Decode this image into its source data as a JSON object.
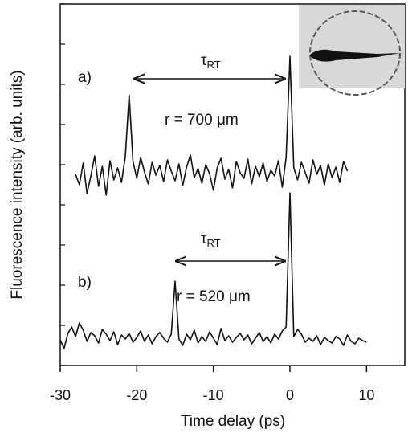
{
  "chart_data": {
    "type": "line",
    "xlabel": "Time delay (ps)",
    "ylabel": "Fluorescence intensity (arb. units)",
    "xlim": [
      -30,
      15
    ],
    "xticks": [
      -30,
      -20,
      -10,
      0,
      10
    ],
    "ylim": [
      0,
      45
    ],
    "yticks": [
      0,
      5,
      10,
      15,
      20,
      25,
      30,
      35,
      40,
      45
    ],
    "series": [
      {
        "name": "a)",
        "color": "#111111",
        "x": [
          -28,
          -27.5,
          -27,
          -26.5,
          -26,
          -25.5,
          -25,
          -24.5,
          -24,
          -23.5,
          -23,
          -22.5,
          -22,
          -21.5,
          -21,
          -20.5,
          -20,
          -19.5,
          -19,
          -18.5,
          -18,
          -17.5,
          -17,
          -16.5,
          -16,
          -15.5,
          -15,
          -14.5,
          -14,
          -13.5,
          -13,
          -12.5,
          -12,
          -11.5,
          -11,
          -10.5,
          -10,
          -9.5,
          -9,
          -8.5,
          -8,
          -7.5,
          -7,
          -6.5,
          -6,
          -5.5,
          -5,
          -4.5,
          -4,
          -3.5,
          -3,
          -2.5,
          -2,
          -1.5,
          -1,
          -0.5,
          0,
          0.5,
          1,
          1.5,
          2,
          2.5,
          3,
          3.5,
          4,
          4.5,
          5,
          5.5,
          6,
          6.5,
          7,
          7.5
        ],
        "values": [
          23.8,
          22.5,
          25.2,
          21.4,
          23.6,
          26.1,
          22.3,
          24.8,
          21.2,
          25.5,
          23.1,
          24.6,
          22.8,
          26.0,
          33.7,
          25.4,
          23.3,
          25.9,
          24.1,
          22.6,
          25.3,
          23.7,
          24.9,
          22.9,
          25.6,
          24.2,
          23.0,
          25.1,
          22.4,
          24.7,
          26.2,
          23.4,
          24.5,
          22.7,
          25.0,
          23.9,
          21.8,
          24.6,
          25.8,
          23.2,
          24.4,
          22.1,
          25.4,
          24.0,
          23.3,
          25.7,
          22.6,
          24.8,
          23.5,
          25.2,
          22.9,
          24.3,
          23.6,
          25.5,
          22.2,
          25.9,
          38.5,
          24.6,
          23.1,
          25.3,
          24.0,
          22.7,
          25.6,
          23.8,
          24.9,
          22.5,
          25.1,
          23.4,
          24.7,
          22.8,
          25.4,
          24.2
        ]
      },
      {
        "name": "b)",
        "color": "#111111",
        "x": [
          -30,
          -29.5,
          -29,
          -28.5,
          -28,
          -27.5,
          -27,
          -26.5,
          -26,
          -25.5,
          -25,
          -24.5,
          -24,
          -23.5,
          -23,
          -22.5,
          -22,
          -21.5,
          -21,
          -20.5,
          -20,
          -19.5,
          -19,
          -18.5,
          -18,
          -17.5,
          -17,
          -16.5,
          -16,
          -15.5,
          -15,
          -14.5,
          -14,
          -13.5,
          -13,
          -12.5,
          -12,
          -11.5,
          -11,
          -10.5,
          -10,
          -9.5,
          -9,
          -8.5,
          -8,
          -7.5,
          -7,
          -6.5,
          -6,
          -5.5,
          -5,
          -4.5,
          -4,
          -3.5,
          -3,
          -2.5,
          -2,
          -1.5,
          -1,
          -0.5,
          0,
          0.5,
          1,
          1.5,
          2,
          2.5,
          3,
          3.5,
          4,
          4.5,
          5,
          5.5,
          6,
          6.5,
          7,
          7.5,
          8,
          8.5,
          9,
          9.5,
          10
        ],
        "values": [
          3.2,
          2.1,
          4.0,
          4.8,
          3.6,
          5.3,
          4.4,
          3.0,
          4.1,
          3.7,
          2.8,
          4.5,
          3.9,
          3.1,
          4.2,
          2.6,
          3.8,
          3.3,
          4.0,
          2.9,
          3.5,
          4.3,
          3.0,
          3.8,
          2.7,
          3.6,
          4.1,
          3.4,
          2.9,
          3.9,
          10.5,
          3.3,
          2.5,
          3.9,
          3.2,
          4.4,
          2.8,
          3.6,
          3.0,
          4.2,
          3.4,
          2.6,
          4.6,
          3.1,
          3.7,
          2.9,
          3.5,
          4.0,
          3.2,
          3.8,
          2.7,
          3.4,
          4.1,
          3.0,
          3.6,
          2.8,
          3.9,
          3.3,
          4.3,
          4.8,
          21.5,
          3.6,
          4.5,
          3.9,
          2.9,
          3.4,
          3.0,
          3.7,
          2.6,
          3.5,
          3.1,
          2.8,
          3.6,
          3.3,
          2.5,
          3.8,
          3.0,
          2.7,
          3.4,
          3.1,
          2.9
        ]
      }
    ],
    "annotations": [
      "τ",
      "RT",
      "r = 700 μm",
      "τ",
      "RT",
      "r = 520 μm"
    ]
  }
}
